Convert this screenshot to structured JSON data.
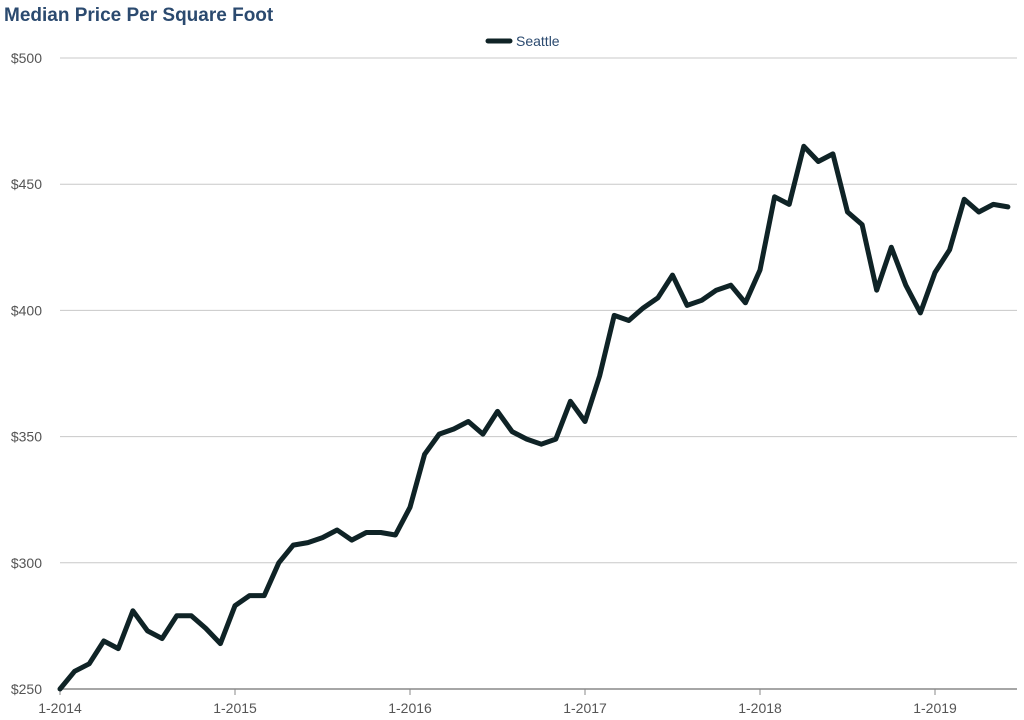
{
  "chart_data": {
    "type": "line",
    "title": "Median Price Per Square Foot",
    "legend_position": "top-center",
    "grid": true,
    "ylim": [
      250,
      500
    ],
    "y_ticks": [
      "$250",
      "$300",
      "$350",
      "$400",
      "$450",
      "$500"
    ],
    "x_ticks": [
      "1-2014",
      "1-2015",
      "1-2016",
      "1-2017",
      "1-2018",
      "1-2019"
    ],
    "series": [
      {
        "name": "Seattle",
        "color": "#0f2326",
        "x": [
          "1-2014",
          "2-2014",
          "3-2014",
          "4-2014",
          "5-2014",
          "6-2014",
          "7-2014",
          "8-2014",
          "9-2014",
          "10-2014",
          "11-2014",
          "12-2014",
          "1-2015",
          "2-2015",
          "3-2015",
          "4-2015",
          "5-2015",
          "6-2015",
          "7-2015",
          "8-2015",
          "9-2015",
          "10-2015",
          "11-2015",
          "12-2015",
          "1-2016",
          "2-2016",
          "3-2016",
          "4-2016",
          "5-2016",
          "6-2016",
          "7-2016",
          "8-2016",
          "9-2016",
          "10-2016",
          "11-2016",
          "12-2016",
          "1-2017",
          "2-2017",
          "3-2017",
          "4-2017",
          "5-2017",
          "6-2017",
          "7-2017",
          "8-2017",
          "9-2017",
          "10-2017",
          "11-2017",
          "12-2017",
          "1-2018",
          "2-2018",
          "3-2018",
          "4-2018",
          "5-2018",
          "6-2018",
          "7-2018",
          "8-2018",
          "9-2018",
          "10-2018",
          "11-2018",
          "12-2018",
          "1-2019",
          "2-2019",
          "3-2019",
          "4-2019",
          "5-2019",
          "6-2019"
        ],
        "values": [
          250,
          257,
          260,
          269,
          266,
          281,
          273,
          270,
          279,
          279,
          274,
          268,
          283,
          287,
          287,
          300,
          307,
          308,
          310,
          313,
          309,
          312,
          312,
          311,
          322,
          343,
          351,
          353,
          356,
          351,
          360,
          352,
          349,
          347,
          349,
          364,
          356,
          374,
          398,
          396,
          401,
          405,
          414,
          402,
          404,
          408,
          410,
          403,
          416,
          445,
          442,
          465,
          459,
          462,
          439,
          434,
          408,
          425,
          410,
          399,
          415,
          424,
          444,
          439,
          442,
          441
        ]
      }
    ]
  }
}
